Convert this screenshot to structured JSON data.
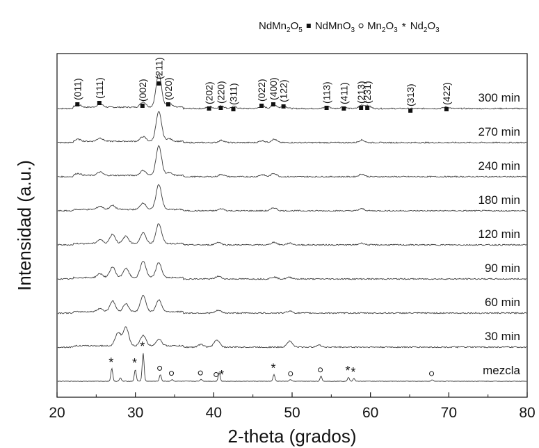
{
  "chart_data": {
    "type": "line",
    "xlabel": "2-theta (grados)",
    "ylabel": "Intensidad (a.u.)",
    "xlim": [
      20,
      80
    ],
    "xticks": [
      20,
      30,
      40,
      50,
      60,
      70,
      80
    ],
    "grid": false,
    "legend_position": "top-right",
    "legend": [
      {
        "symbol": "square-filled",
        "formula": [
          [
            "NdMn",
            ""
          ],
          [
            "2",
            "sub"
          ],
          [
            "O",
            ""
          ],
          [
            "5",
            "sub"
          ]
        ]
      },
      {
        "symbol": "square-filled",
        "formula": [
          [
            "NdMnO",
            ""
          ],
          [
            "3",
            "sub"
          ]
        ]
      },
      {
        "symbol": "circle-open",
        "formula": [
          [
            "Mn",
            ""
          ],
          [
            "2",
            "sub"
          ],
          [
            "O",
            ""
          ],
          [
            "3",
            "sub"
          ]
        ]
      },
      {
        "symbol": "star",
        "formula": [
          [
            "Nd",
            ""
          ],
          [
            "2",
            "sub"
          ],
          [
            "O",
            ""
          ],
          [
            "3",
            "sub"
          ]
        ]
      }
    ],
    "series": [
      {
        "name": "300 min",
        "peaks": [
          [
            22.6,
            0.08
          ],
          [
            25.4,
            0.1
          ],
          [
            30.9,
            0.16
          ],
          [
            32.9,
            1.0
          ],
          [
            34.2,
            0.12
          ],
          [
            39.4,
            0.06
          ],
          [
            40.9,
            0.08
          ],
          [
            42.5,
            0.06
          ],
          [
            46.1,
            0.08
          ],
          [
            47.6,
            0.12
          ],
          [
            48.9,
            0.07
          ],
          [
            54.4,
            0.06
          ],
          [
            56.4,
            0.05
          ],
          [
            58.8,
            0.1
          ],
          [
            59.6,
            0.08
          ],
          [
            69.6,
            0.05
          ]
        ]
      },
      {
        "name": "270 min",
        "peaks": [
          [
            22.6,
            0.06
          ],
          [
            25.4,
            0.1
          ],
          [
            30.9,
            0.14
          ],
          [
            32.9,
            0.88
          ],
          [
            34.2,
            0.08
          ],
          [
            40.9,
            0.07
          ],
          [
            46.1,
            0.06
          ],
          [
            47.6,
            0.1
          ],
          [
            58.8,
            0.08
          ]
        ]
      },
      {
        "name": "240 min",
        "peaks": [
          [
            22.6,
            0.06
          ],
          [
            25.4,
            0.1
          ],
          [
            30.9,
            0.15
          ],
          [
            32.9,
            0.88
          ],
          [
            34.2,
            0.08
          ],
          [
            40.9,
            0.07
          ],
          [
            46.1,
            0.06
          ],
          [
            47.6,
            0.1
          ],
          [
            58.8,
            0.08
          ]
        ]
      },
      {
        "name": "180 min",
        "peaks": [
          [
            25.4,
            0.1
          ],
          [
            27.0,
            0.12
          ],
          [
            30.9,
            0.2
          ],
          [
            32.9,
            0.75
          ],
          [
            40.9,
            0.06
          ],
          [
            47.6,
            0.09
          ],
          [
            58.8,
            0.06
          ]
        ]
      },
      {
        "name": "120 min",
        "peaks": [
          [
            25.4,
            0.12
          ],
          [
            27.0,
            0.28
          ],
          [
            28.7,
            0.22
          ],
          [
            30.9,
            0.32
          ],
          [
            32.9,
            0.6
          ],
          [
            40.5,
            0.08
          ],
          [
            47.6,
            0.08
          ],
          [
            49.6,
            0.05
          ],
          [
            58.8,
            0.05
          ]
        ]
      },
      {
        "name": "90 min",
        "peaks": [
          [
            25.4,
            0.12
          ],
          [
            27.0,
            0.32
          ],
          [
            28.7,
            0.28
          ],
          [
            30.9,
            0.5
          ],
          [
            32.9,
            0.45
          ],
          [
            40.5,
            0.08
          ],
          [
            47.6,
            0.06
          ],
          [
            49.6,
            0.05
          ]
        ]
      },
      {
        "name": "60 min",
        "peaks": [
          [
            25.4,
            0.1
          ],
          [
            27.0,
            0.32
          ],
          [
            28.7,
            0.24
          ],
          [
            30.9,
            0.48
          ],
          [
            32.9,
            0.35
          ],
          [
            40.5,
            0.08
          ],
          [
            49.6,
            0.06
          ]
        ]
      },
      {
        "name": "30 min",
        "peaks": [
          [
            27.7,
            0.4
          ],
          [
            28.7,
            0.55
          ],
          [
            30.9,
            0.32
          ],
          [
            32.9,
            0.2
          ],
          [
            38.3,
            0.08
          ],
          [
            40.3,
            0.22
          ],
          [
            49.6,
            0.18
          ],
          [
            53.3,
            0.06
          ]
        ]
      },
      {
        "name": "mezcla",
        "peaks": [
          [
            26.9,
            0.38
          ],
          [
            28.0,
            0.1
          ],
          [
            29.9,
            0.35
          ],
          [
            30.9,
            0.85
          ],
          [
            33.1,
            0.2
          ],
          [
            34.6,
            0.05
          ],
          [
            38.3,
            0.06
          ],
          [
            40.6,
            0.26
          ],
          [
            47.6,
            0.2
          ],
          [
            49.7,
            0.05
          ],
          [
            53.6,
            0.15
          ],
          [
            57.1,
            0.12
          ],
          [
            57.8,
            0.08
          ],
          [
            67.8,
            0.04
          ]
        ]
      }
    ],
    "reflections": [
      {
        "label": "(011)",
        "x": 22.6
      },
      {
        "label": "(111)",
        "x": 25.4
      },
      {
        "label": "(002)",
        "x": 30.9
      },
      {
        "label": "(211)",
        "x": 33.0
      },
      {
        "label": "(020)",
        "x": 34.2
      },
      {
        "label": "(202)",
        "x": 39.4
      },
      {
        "label": "(220)",
        "x": 40.9
      },
      {
        "label": "(311)",
        "x": 42.5
      },
      {
        "label": "(022)",
        "x": 46.1
      },
      {
        "label": "(400)",
        "x": 47.6
      },
      {
        "label": "(122)",
        "x": 48.9
      },
      {
        "label": "(113)",
        "x": 54.4
      },
      {
        "label": "(411)",
        "x": 56.6
      },
      {
        "label": "(213)",
        "x": 58.8
      },
      {
        "label": "(231)",
        "x": 59.6
      },
      {
        "label": "(313)",
        "x": 65.1
      },
      {
        "label": "(422)",
        "x": 69.7
      }
    ],
    "mezcla_markers": [
      {
        "symbol": "star",
        "x": 26.9
      },
      {
        "symbol": "star",
        "x": 29.9
      },
      {
        "symbol": "star",
        "x": 30.9
      },
      {
        "symbol": "circle-open",
        "x": 33.1
      },
      {
        "symbol": "circle-open",
        "x": 34.6
      },
      {
        "symbol": "circle-open",
        "x": 38.3
      },
      {
        "symbol": "circle-open",
        "x": 40.3
      },
      {
        "symbol": "star",
        "x": 41.0
      },
      {
        "symbol": "star",
        "x": 47.6
      },
      {
        "symbol": "circle-open",
        "x": 49.8
      },
      {
        "symbol": "circle-open",
        "x": 53.6
      },
      {
        "symbol": "star",
        "x": 57.1
      },
      {
        "symbol": "star",
        "x": 57.8
      },
      {
        "symbol": "circle-open",
        "x": 67.8
      }
    ],
    "colors": {
      "trace": "#3a3a3a",
      "axis": "#111111",
      "marker": "#111111"
    }
  }
}
